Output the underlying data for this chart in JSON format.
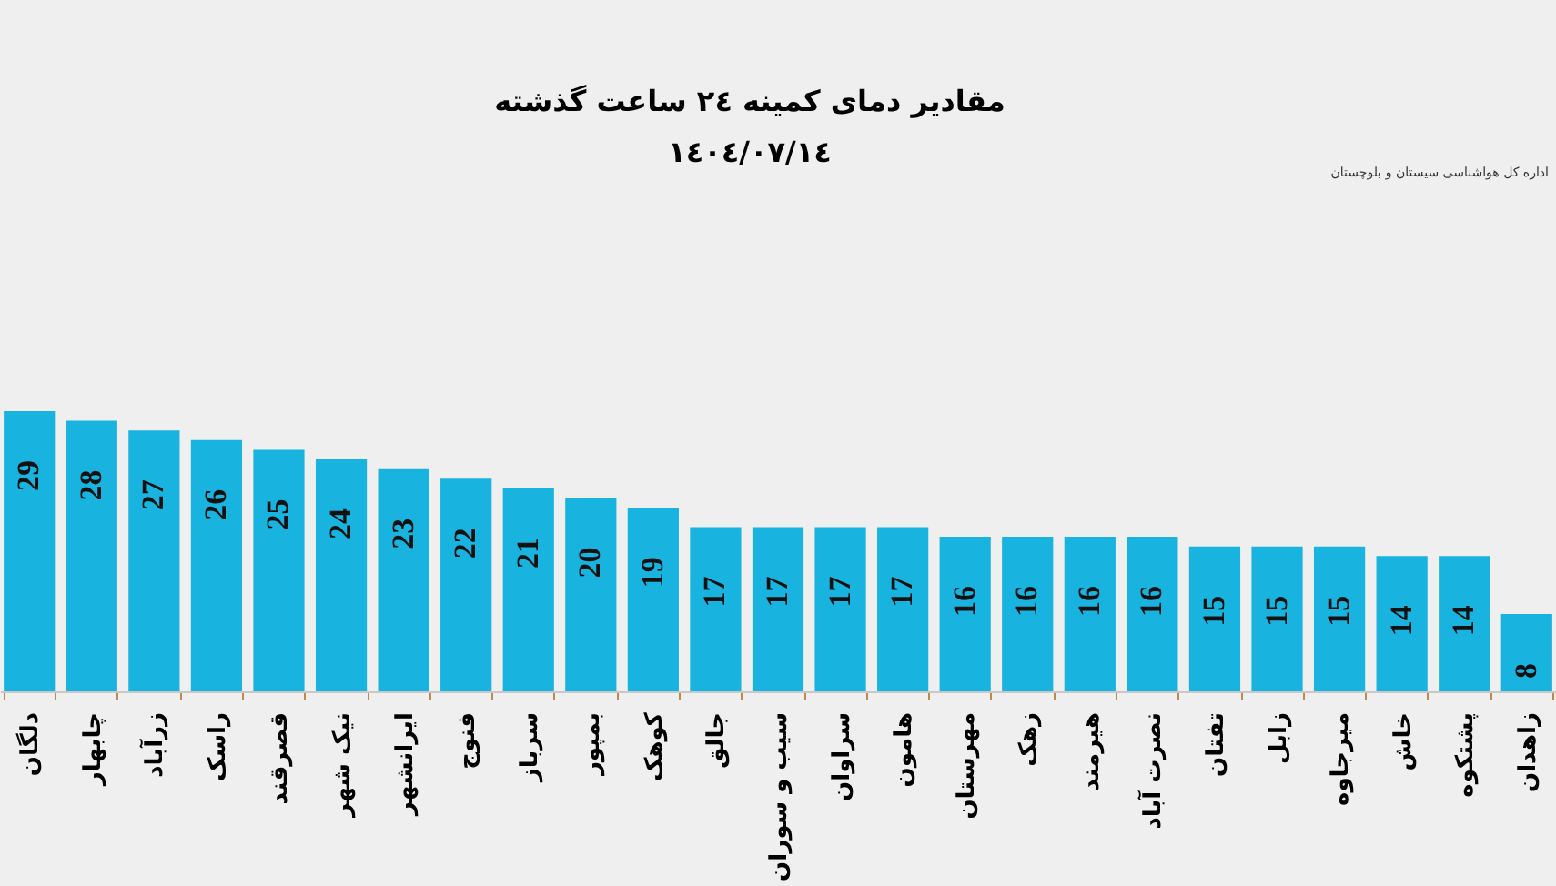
{
  "chart_data": {
    "type": "bar",
    "title": "مقادیر دمای کمینه ٢٤ ساعت گذشته",
    "subtitle": "١٤٠٤/٠٧/١٤",
    "categories": [
      "دلگان",
      "چابهار",
      "زرآباد",
      "راسک",
      "قصرقند",
      "نیک شهر",
      "ایرانشهر",
      "فنوج",
      "سرباز",
      "بمپور",
      "کوهک",
      "جالق",
      "سیب و سوران",
      "سراوان",
      "هامون",
      "مهرستان",
      "زهک",
      "هیرمند",
      "نصرت آباد",
      "تفتان",
      "زابل",
      "میرجاوه",
      "خاش",
      "پشتکوه",
      "زاهدان"
    ],
    "values": [
      29,
      28,
      27,
      26,
      25,
      24,
      23,
      22,
      21,
      20,
      19,
      17,
      17,
      17,
      17,
      16,
      16,
      16,
      16,
      15,
      15,
      15,
      14,
      14,
      8
    ],
    "color": "#19b3e0",
    "data_labels": true,
    "tick_labels": "x",
    "annotations": [
      "اداره کل هواشناسی سیستان و بلوچستان"
    ]
  }
}
